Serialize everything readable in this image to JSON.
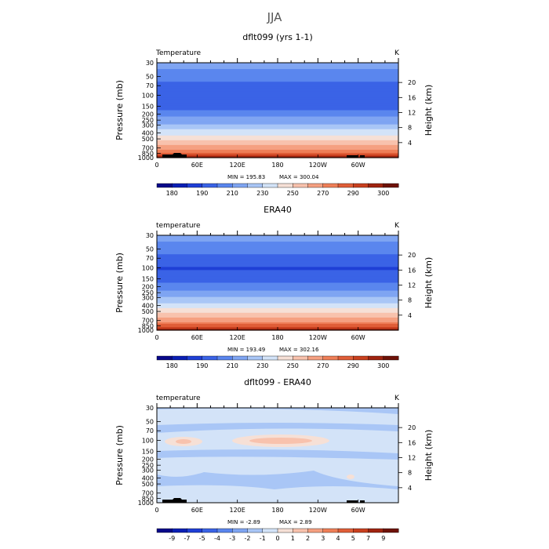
{
  "figure_title": "JJA",
  "chart_data": [
    {
      "type": "heatmap",
      "title": "dflt099 (yrs 1-1)",
      "variable_label": "Temperature",
      "units": "K",
      "ylabel": "Pressure (mb)",
      "y2label": "Height (km)",
      "pressure_ticks": [
        "30",
        "50",
        "70",
        "100",
        "150",
        "200",
        "250",
        "300",
        "400",
        "500",
        "700",
        "850",
        "1000"
      ],
      "height_ticks": [
        "20",
        "16",
        "12",
        "8",
        "4"
      ],
      "lon_ticks": [
        "0",
        "60E",
        "120E",
        "180",
        "120W",
        "60W"
      ],
      "min_label": "MIN = 195.83",
      "max_label": "MAX = 300.04",
      "colorbar_labels": [
        "180",
        "190",
        "210",
        "230",
        "250",
        "270",
        "290",
        "300"
      ],
      "profile_k": [
        [
          30,
          225
        ],
        [
          50,
          214
        ],
        [
          70,
          207
        ],
        [
          100,
          200
        ],
        [
          150,
          205
        ],
        [
          200,
          215
        ],
        [
          250,
          225
        ],
        [
          300,
          232
        ],
        [
          400,
          245
        ],
        [
          500,
          258
        ],
        [
          700,
          275
        ],
        [
          850,
          286
        ],
        [
          1000,
          298
        ]
      ]
    },
    {
      "type": "heatmap",
      "title": "ERA40",
      "variable_label": "temperature",
      "units": "K",
      "ylabel": "Pressure (mb)",
      "y2label": "Height (km)",
      "pressure_ticks": [
        "30",
        "50",
        "70",
        "100",
        "150",
        "200",
        "250",
        "300",
        "400",
        "500",
        "700",
        "850",
        "1000"
      ],
      "height_ticks": [
        "20",
        "16",
        "12",
        "8",
        "4"
      ],
      "lon_ticks": [
        "0",
        "60E",
        "120E",
        "180",
        "120W",
        "60W"
      ],
      "min_label": "MIN = 193.49",
      "max_label": "MAX = 302.16",
      "colorbar_labels": [
        "180",
        "190",
        "210",
        "230",
        "250",
        "270",
        "290",
        "300"
      ],
      "profile_k": [
        [
          30,
          225
        ],
        [
          50,
          214
        ],
        [
          70,
          207
        ],
        [
          100,
          199
        ],
        [
          150,
          204
        ],
        [
          200,
          214
        ],
        [
          250,
          224
        ],
        [
          300,
          231
        ],
        [
          400,
          244
        ],
        [
          500,
          257
        ],
        [
          700,
          276
        ],
        [
          850,
          288
        ],
        [
          1000,
          300
        ]
      ]
    },
    {
      "type": "heatmap",
      "title": "dflt099 - ERA40",
      "variable_label": "temperature",
      "units": "K",
      "ylabel": "Pressure (mb)",
      "y2label": "Height (km)",
      "pressure_ticks": [
        "30",
        "50",
        "70",
        "100",
        "150",
        "200",
        "250",
        "300",
        "400",
        "500",
        "700",
        "850",
        "1000"
      ],
      "height_ticks": [
        "20",
        "16",
        "12",
        "8",
        "4"
      ],
      "lon_ticks": [
        "0",
        "60E",
        "120E",
        "180",
        "120W",
        "60W"
      ],
      "min_label": "MIN = -2.89",
      "max_label": "MAX = 2.89",
      "colorbar_labels": [
        "-9",
        "-7",
        "-5",
        "-4",
        "-3",
        "-2",
        "-1",
        "0",
        "1",
        "2",
        "3",
        "4",
        "5",
        "7",
        "9"
      ]
    }
  ],
  "colors": {
    "abs_palette": [
      "#08088a",
      "#0a1fb5",
      "#1f3fd6",
      "#3a63e6",
      "#5a86ee",
      "#7fa5f2",
      "#a9c6f6",
      "#d3e3f8",
      "#f6e0d6",
      "#f8c2ad",
      "#f5a081",
      "#ef7f58",
      "#e05e38",
      "#c9401f",
      "#a02410",
      "#6e1208"
    ],
    "diff_palette": [
      "#08088a",
      "#0a1fb5",
      "#1f3fd6",
      "#3a63e6",
      "#5a86ee",
      "#7fa5f2",
      "#a9c6f6",
      "#d3e3f8",
      "#f6e0d6",
      "#f8c2ad",
      "#f5a081",
      "#ef7f58",
      "#e05e38",
      "#c9401f",
      "#a02410",
      "#6e1208"
    ],
    "topography": "#000000"
  }
}
